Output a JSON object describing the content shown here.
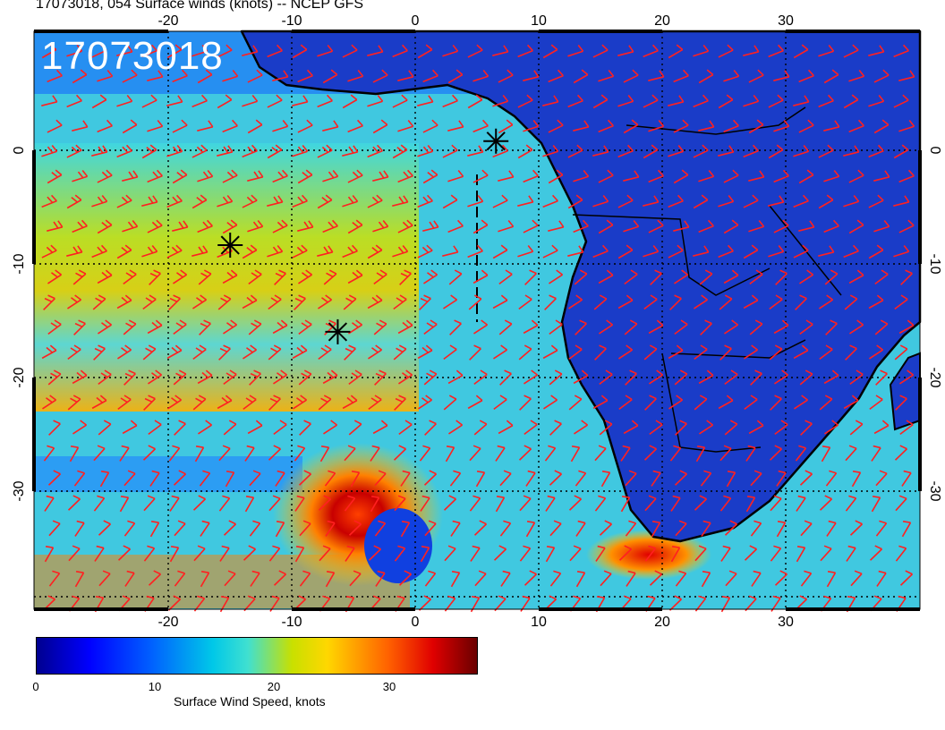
{
  "title": "17073018, 054 Surface winds (knots) -- NCEP GFS",
  "timestamp_stamp": "17073018",
  "map": {
    "lon_ticks": [
      "-20",
      "-10",
      "0",
      "10",
      "20",
      "30"
    ],
    "lat_ticks": [
      "0",
      "-10",
      "-20",
      "-30"
    ],
    "lon_range": [
      -30,
      40
    ],
    "lat_range": [
      -40,
      10
    ],
    "barb_color": "#ff2020",
    "coast_color": "#000000",
    "storm_markers": [
      {
        "lon": 6.5,
        "lat": 0.5
      },
      {
        "lon": -14.5,
        "lat": -8.5
      },
      {
        "lon": -6,
        "lat": -16
      }
    ]
  },
  "colorbar": {
    "label": "Surface Wind Speed, knots",
    "ticks": [
      "0",
      "10",
      "20",
      "30"
    ],
    "range": [
      0,
      37
    ]
  }
}
